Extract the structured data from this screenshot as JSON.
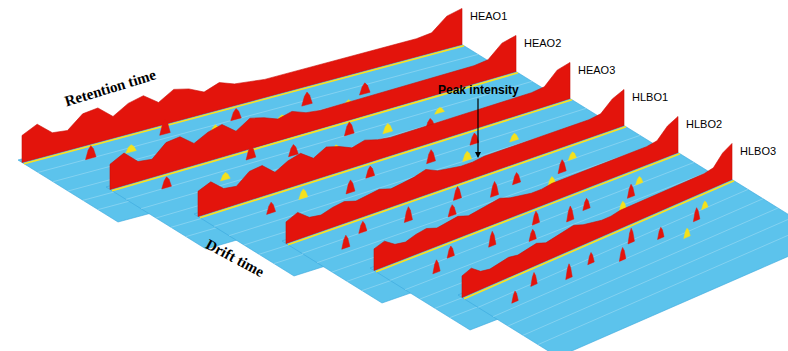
{
  "chart_data": {
    "type": "fingerprint",
    "x_label": "Retention time",
    "y_label": "Drift time",
    "z_label": "Peak intensity",
    "tick_labels": false,
    "series": [
      {
        "name": "HEAO1",
        "ridge": [
          0.75,
          0.95,
          0.6,
          0.55,
          0.9,
          0.95,
          0.6,
          0.85,
          0.95,
          0.65,
          0.9,
          0.8,
          0.6,
          0.75,
          0.6,
          0.55,
          0.5,
          0.5,
          0.5,
          0.5,
          0.5,
          0.5,
          0.5,
          0.5,
          0.5,
          0.5,
          0.5,
          0.55,
          0.9,
          1.0
        ],
        "peaks": [
          [
            0.12,
            0.2,
            0.35
          ],
          [
            0.2,
            0.25,
            0.2
          ],
          [
            0.3,
            0.15,
            0.4
          ],
          [
            0.38,
            0.3,
            0.25
          ],
          [
            0.45,
            0.2,
            0.3
          ],
          [
            0.52,
            0.35,
            0.15
          ],
          [
            0.6,
            0.25,
            0.35
          ],
          [
            0.66,
            0.4,
            0.2
          ],
          [
            0.72,
            0.3,
            0.3
          ]
        ]
      },
      {
        "name": "HEAO2",
        "ridge": [
          0.7,
          0.9,
          0.55,
          0.5,
          0.85,
          0.9,
          0.6,
          0.8,
          0.9,
          0.6,
          0.85,
          0.75,
          0.6,
          0.7,
          0.55,
          0.5,
          0.5,
          0.5,
          0.5,
          0.5,
          0.5,
          0.5,
          0.5,
          0.5,
          0.5,
          0.5,
          0.5,
          0.55,
          0.9,
          1.0
        ],
        "peaks": [
          [
            0.1,
            0.2,
            0.3
          ],
          [
            0.22,
            0.3,
            0.2
          ],
          [
            0.32,
            0.15,
            0.35
          ],
          [
            0.4,
            0.25,
            0.3
          ],
          [
            0.48,
            0.35,
            0.2
          ],
          [
            0.55,
            0.2,
            0.35
          ],
          [
            0.62,
            0.3,
            0.25
          ],
          [
            0.7,
            0.4,
            0.3
          ],
          [
            0.76,
            0.25,
            0.15
          ]
        ]
      },
      {
        "name": "HEAO3",
        "ridge": [
          0.7,
          0.85,
          0.55,
          0.5,
          0.8,
          0.85,
          0.55,
          0.75,
          0.85,
          0.6,
          0.8,
          0.7,
          0.55,
          0.65,
          0.55,
          0.5,
          0.5,
          0.5,
          0.5,
          0.5,
          0.5,
          0.5,
          0.5,
          0.5,
          0.5,
          0.5,
          0.5,
          0.55,
          0.9,
          1.0
        ],
        "peaks": [
          [
            0.14,
            0.25,
            0.3
          ],
          [
            0.24,
            0.2,
            0.25
          ],
          [
            0.34,
            0.3,
            0.35
          ],
          [
            0.42,
            0.2,
            0.3
          ],
          [
            0.5,
            0.4,
            0.2
          ],
          [
            0.57,
            0.25,
            0.35
          ],
          [
            0.64,
            0.35,
            0.25
          ],
          [
            0.7,
            0.2,
            0.3
          ],
          [
            0.78,
            0.3,
            0.2
          ]
        ]
      },
      {
        "name": "HLBO1",
        "ridge": [
          0.6,
          0.75,
          0.5,
          0.45,
          0.55,
          0.6,
          0.5,
          0.55,
          0.6,
          0.5,
          0.55,
          0.6,
          0.7,
          0.55,
          0.5,
          0.45,
          0.45,
          0.5,
          0.5,
          0.5,
          0.5,
          0.5,
          0.5,
          0.5,
          0.5,
          0.5,
          0.5,
          0.55,
          0.85,
          1.0
        ],
        "peaks": [
          [
            0.1,
            0.3,
            0.35
          ],
          [
            0.18,
            0.2,
            0.3
          ],
          [
            0.3,
            0.25,
            0.4
          ],
          [
            0.4,
            0.35,
            0.3
          ],
          [
            0.46,
            0.2,
            0.35
          ],
          [
            0.54,
            0.3,
            0.4
          ],
          [
            0.62,
            0.25,
            0.3
          ],
          [
            0.68,
            0.4,
            0.25
          ],
          [
            0.74,
            0.3,
            0.35
          ],
          [
            0.8,
            0.2,
            0.2
          ]
        ]
      },
      {
        "name": "HLBO2",
        "ridge": [
          0.6,
          0.7,
          0.5,
          0.45,
          0.55,
          0.6,
          0.5,
          0.55,
          0.6,
          0.5,
          0.55,
          0.6,
          0.65,
          0.55,
          0.5,
          0.45,
          0.45,
          0.5,
          0.5,
          0.5,
          0.5,
          0.5,
          0.5,
          0.5,
          0.5,
          0.5,
          0.5,
          0.55,
          0.85,
          1.0
        ],
        "peaks": [
          [
            0.12,
            0.3,
            0.35
          ],
          [
            0.2,
            0.2,
            0.3
          ],
          [
            0.32,
            0.25,
            0.4
          ],
          [
            0.42,
            0.35,
            0.3
          ],
          [
            0.48,
            0.2,
            0.35
          ],
          [
            0.56,
            0.3,
            0.4
          ],
          [
            0.63,
            0.25,
            0.3
          ],
          [
            0.7,
            0.4,
            0.25
          ],
          [
            0.76,
            0.3,
            0.35
          ],
          [
            0.82,
            0.2,
            0.2
          ]
        ]
      },
      {
        "name": "HLBO3",
        "ridge": [
          0.6,
          0.7,
          0.5,
          0.45,
          0.5,
          0.55,
          0.5,
          0.55,
          0.6,
          0.5,
          0.55,
          0.6,
          0.65,
          0.55,
          0.5,
          0.45,
          0.45,
          0.5,
          0.5,
          0.5,
          0.5,
          0.5,
          0.5,
          0.5,
          0.5,
          0.5,
          0.5,
          0.55,
          0.85,
          1.0
        ],
        "peaks": [
          [
            0.1,
            0.3,
            0.3
          ],
          [
            0.2,
            0.22,
            0.35
          ],
          [
            0.3,
            0.3,
            0.4
          ],
          [
            0.4,
            0.25,
            0.3
          ],
          [
            0.48,
            0.35,
            0.35
          ],
          [
            0.56,
            0.22,
            0.4
          ],
          [
            0.64,
            0.3,
            0.3
          ],
          [
            0.7,
            0.4,
            0.25
          ],
          [
            0.78,
            0.28,
            0.35
          ],
          [
            0.84,
            0.2,
            0.2
          ]
        ]
      }
    ]
  }
}
